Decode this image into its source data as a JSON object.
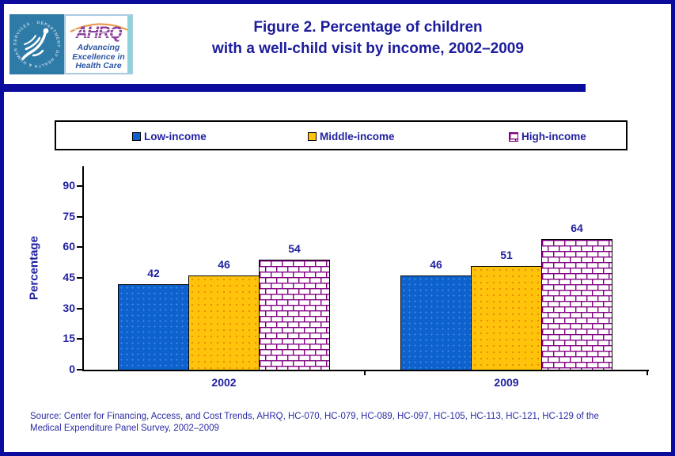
{
  "header": {
    "hhs_seal_text": "DEPARTMENT OF HEALTH & HUMAN SERVICES · USA",
    "ahrq_acronym": "AHRQ",
    "ahrq_tagline_line1": "Advancing",
    "ahrq_tagline_line2": "Excellence in",
    "ahrq_tagline_line3": "Health Care",
    "title_line1": "Figure 2. Percentage of children",
    "title_line2": "with a well-child visit by income, 2002–2009"
  },
  "legend": {
    "items": [
      {
        "label": "Low-income",
        "swatch": "solid-blue"
      },
      {
        "label": "Middle-income",
        "swatch": "solid-yellow"
      },
      {
        "label": "High-income",
        "swatch": "brick-pattern"
      }
    ]
  },
  "chart_data": {
    "type": "bar",
    "title": "Figure 2. Percentage of children with a well-child visit by income, 2002–2009",
    "categories": [
      "2002",
      "2009"
    ],
    "series": [
      {
        "name": "Low-income",
        "values": [
          42,
          46
        ],
        "style": "solid-blue",
        "color": "#0e62cd"
      },
      {
        "name": "Middle-income",
        "values": [
          46,
          51
        ],
        "style": "solid-yellow",
        "color": "#ffc30b"
      },
      {
        "name": "High-income",
        "values": [
          54,
          64
        ],
        "style": "brick-pattern",
        "color": "#ffffff",
        "pattern_color": "#800080"
      }
    ],
    "xlabel": "",
    "ylabel": "Percentage",
    "yticks": [
      0,
      15,
      30,
      45,
      60,
      75,
      90
    ],
    "ylim": [
      0,
      100
    ],
    "grid": false,
    "legend_position": "top",
    "value_labels": true
  },
  "source": {
    "line1": "Source: Center for Financing, Access, and Cost Trends, AHRQ,  HC-070, HC-079, HC-089, HC-097, HC-105, HC-113, HC-121, HC-129 of the",
    "line2": "Medical Expenditure Panel Survey,  2002–2009"
  },
  "colors": {
    "page_border": "#0b0b9d",
    "navy_text": "#2121a0",
    "title_navy": "#1c1c9c",
    "bar_blue": "#0e62cd",
    "bar_yellow": "#ffc30b",
    "brick_purple": "#800080",
    "hhs_teal": "#2f7ba8"
  }
}
